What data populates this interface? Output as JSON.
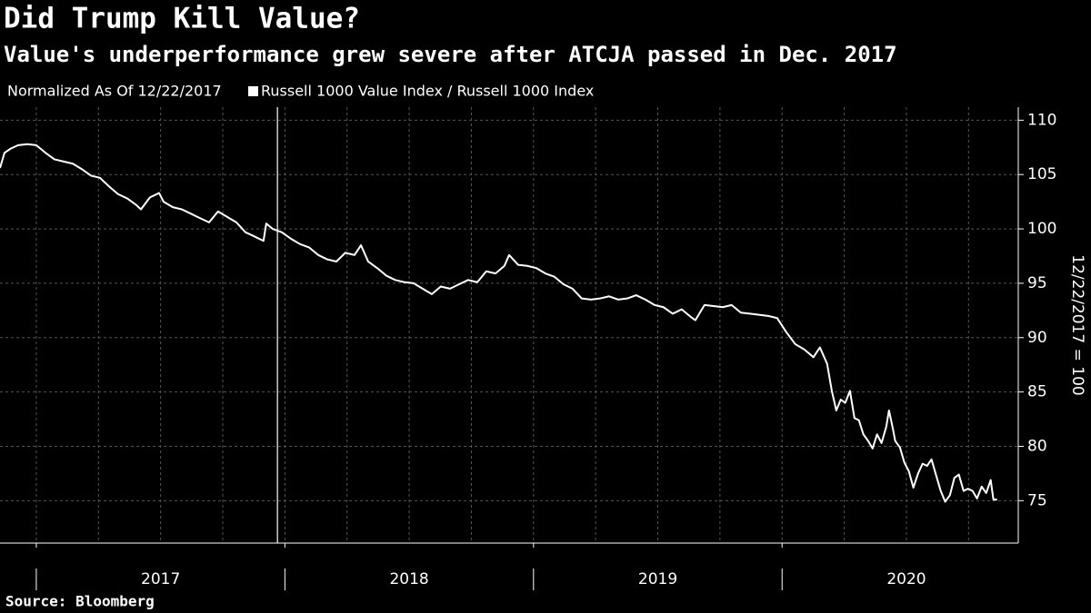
{
  "chart_data": {
    "type": "line",
    "title": "Did Trump Kill Value?",
    "subtitle": "Value's underperformance grew severe after ATCJA passed in Dec. 2017",
    "note": "Normalized As Of 12/22/2017",
    "y_axis_label": "12/22/2017 = 100",
    "source": "Source: Bloomberg",
    "x": [
      2016.854,
      2016.872,
      2016.898,
      2016.927,
      2016.964,
      2017.0,
      2017.037,
      2017.073,
      2017.11,
      2017.147,
      2017.183,
      2017.22,
      2017.256,
      2017.293,
      2017.329,
      2017.366,
      2017.402,
      2017.421,
      2017.457,
      2017.494,
      2017.512,
      2017.549,
      2017.585,
      2017.622,
      2017.658,
      2017.695,
      2017.731,
      2017.768,
      2017.805,
      2017.841,
      2017.878,
      2017.914,
      2017.925,
      2017.951,
      2017.987,
      2018.024,
      2018.061,
      2018.097,
      2018.134,
      2018.17,
      2018.207,
      2018.243,
      2018.28,
      2018.306,
      2018.335,
      2018.371,
      2018.408,
      2018.444,
      2018.481,
      2018.518,
      2018.554,
      2018.591,
      2018.627,
      2018.664,
      2018.7,
      2018.737,
      2018.774,
      2018.81,
      2018.847,
      2018.883,
      2018.902,
      2018.938,
      2018.975,
      2019.011,
      2019.048,
      2019.084,
      2019.121,
      2019.157,
      2019.194,
      2019.231,
      2019.267,
      2019.304,
      2019.34,
      2019.377,
      2019.413,
      2019.45,
      2019.487,
      2019.523,
      2019.56,
      2019.596,
      2019.633,
      2019.651,
      2019.688,
      2019.724,
      2019.761,
      2019.797,
      2019.834,
      2019.87,
      2019.907,
      2019.943,
      2019.98,
      2020.017,
      2020.053,
      2020.09,
      2020.126,
      2020.152,
      2020.181,
      2020.2,
      2020.218,
      2020.236,
      2020.254,
      2020.273,
      2020.291,
      2020.309,
      2020.327,
      2020.346,
      2020.364,
      2020.382,
      2020.4,
      2020.419,
      2020.43,
      2020.444,
      2020.455,
      2020.474,
      2020.492,
      2020.51,
      2020.528,
      2020.547,
      2020.565,
      2020.583,
      2020.601,
      2020.62,
      2020.638,
      2020.656,
      2020.675,
      2020.693,
      2020.711,
      2020.73,
      2020.748,
      2020.766,
      2020.784,
      2020.803,
      2020.821,
      2020.839,
      2020.85,
      2020.865
    ],
    "series": [
      {
        "name": "Russell 1000 Value Index / Russell 1000 Index",
        "color": "#ffffff",
        "values": [
          105.6,
          107,
          107.4,
          107.7,
          107.8,
          107.7,
          107,
          106.4,
          106.2,
          106,
          105.5,
          104.9,
          104.7,
          103.9,
          103.2,
          102.8,
          102.2,
          101.8,
          102.9,
          103.3,
          102.5,
          102,
          101.8,
          101.4,
          101,
          100.6,
          101.6,
          101.1,
          100.6,
          99.7,
          99.3,
          98.9,
          100.5,
          100,
          99.7,
          99.1,
          98.6,
          98.3,
          97.6,
          97.2,
          97,
          97.8,
          97.6,
          98.5,
          97,
          96.4,
          95.7,
          95.3,
          95.1,
          95,
          94.5,
          94,
          94.7,
          94.5,
          94.9,
          95.3,
          95.1,
          96.1,
          95.9,
          96.6,
          97.6,
          96.7,
          96.6,
          96.4,
          95.9,
          95.6,
          94.9,
          94.5,
          93.6,
          93.5,
          93.6,
          93.8,
          93.5,
          93.6,
          93.9,
          93.5,
          93,
          92.8,
          92.2,
          92.6,
          91.9,
          91.6,
          93,
          92.9,
          92.8,
          93,
          92.3,
          92.2,
          92.1,
          92,
          91.8,
          90.5,
          89.4,
          88.9,
          88.2,
          89.1,
          87.6,
          85.1,
          83.3,
          84.3,
          84,
          85.1,
          82.6,
          82.4,
          81.1,
          80.5,
          79.8,
          81.1,
          80.3,
          81.8,
          83.3,
          81.8,
          80.5,
          79.9,
          78.5,
          77.7,
          76.2,
          77.5,
          78.4,
          78.2,
          78.8,
          77.3,
          75.9,
          74.9,
          75.5,
          77.1,
          77.4,
          75.9,
          76.1,
          75.9,
          75.2,
          76.3,
          75.7,
          76.9,
          75.1,
          75.1
        ]
      }
    ],
    "xlim": [
      2016.854,
      2020.95
    ],
    "xticks": [
      2017,
      2018,
      2019,
      2020
    ],
    "x_grid_step": 0.25,
    "marker_x": 2017.97,
    "ylim": [
      71.1,
      111.2
    ],
    "yticks": [
      75,
      80,
      85,
      90,
      95,
      100,
      105,
      110
    ],
    "grid": true
  }
}
